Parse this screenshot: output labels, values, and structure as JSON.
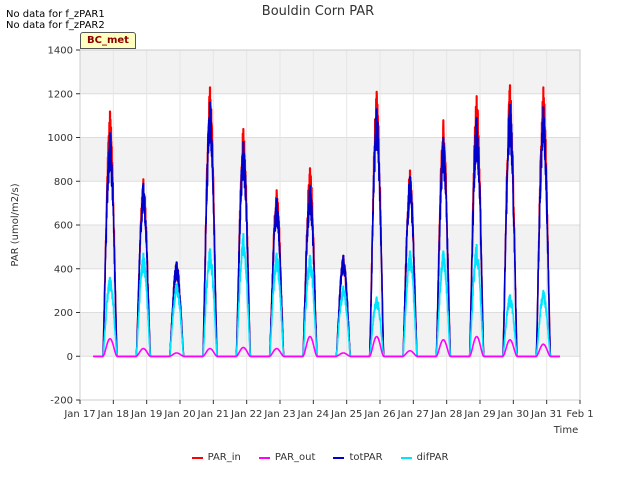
{
  "notes": [
    "No data for f_zPAR1",
    "No data for f_zPAR2"
  ],
  "badge": "BC_met",
  "chart_data": {
    "type": "line",
    "title": "Bouldin Corn PAR",
    "xlabel": "Time",
    "ylabel": "PAR (umol/m2/s)",
    "ylim": [
      -200,
      1400
    ],
    "xlim": [
      17,
      32
    ],
    "yticks": [
      -200,
      0,
      200,
      400,
      600,
      800,
      1000,
      1200,
      1400
    ],
    "xticks": [
      {
        "pos": 17,
        "label": "Jan 17"
      },
      {
        "pos": 18,
        "label": "Jan 18"
      },
      {
        "pos": 19,
        "label": "Jan 19"
      },
      {
        "pos": 20,
        "label": "Jan 20"
      },
      {
        "pos": 21,
        "label": "Jan 21"
      },
      {
        "pos": 22,
        "label": "Jan 22"
      },
      {
        "pos": 23,
        "label": "Jan 23"
      },
      {
        "pos": 24,
        "label": "Jan 24"
      },
      {
        "pos": 25,
        "label": "Jan 25"
      },
      {
        "pos": 26,
        "label": "Jan 26"
      },
      {
        "pos": 27,
        "label": "Jan 27"
      },
      {
        "pos": 28,
        "label": "Jan 28"
      },
      {
        "pos": 29,
        "label": "Jan 29"
      },
      {
        "pos": 30,
        "label": "Jan 30"
      },
      {
        "pos": 31,
        "label": "Jan 31"
      },
      {
        "pos": 32,
        "label": "Feb 1"
      }
    ],
    "data_range": [
      17.4,
      31.4
    ],
    "daily_peaks": {
      "days": [
        17.9,
        18.9,
        19.9,
        20.9,
        21.9,
        22.9,
        23.9,
        24.9,
        25.9,
        26.9,
        27.9,
        28.9,
        29.9,
        30.9
      ],
      "PAR_in": [
        1120,
        810,
        430,
        1230,
        1040,
        760,
        860,
        460,
        1210,
        850,
        1080,
        1190,
        1240,
        1230
      ],
      "PAR_out": [
        80,
        35,
        15,
        35,
        40,
        35,
        90,
        15,
        90,
        25,
        75,
        90,
        75,
        55
      ],
      "totPAR": [
        1020,
        790,
        430,
        1160,
        980,
        720,
        780,
        460,
        1130,
        820,
        1000,
        1090,
        1150,
        1140
      ],
      "difPAR": [
        360,
        470,
        330,
        490,
        560,
        470,
        460,
        320,
        270,
        480,
        480,
        510,
        280,
        300
      ]
    },
    "series": [
      {
        "name": "PAR_in",
        "color": "#ff0000"
      },
      {
        "name": "PAR_out",
        "color": "#ff00ff"
      },
      {
        "name": "totPAR",
        "color": "#0000cc"
      },
      {
        "name": "difPAR",
        "color": "#00e5ff"
      }
    ],
    "grid": true,
    "legend_position": "bottom"
  }
}
